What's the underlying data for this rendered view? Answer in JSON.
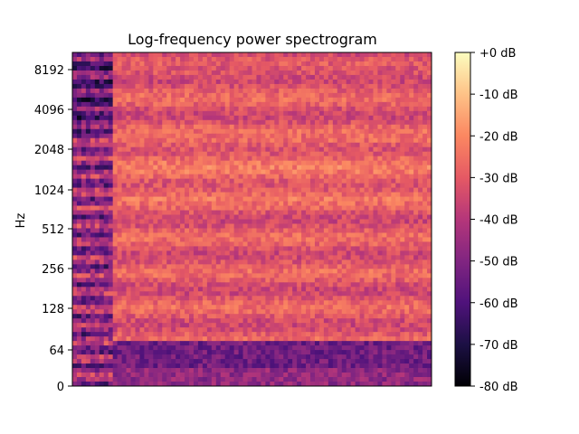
{
  "chart_data": {
    "type": "heatmap",
    "title": "Log-frequency power spectrogram",
    "xlabel": "",
    "ylabel": "Hz",
    "y_scale": "log2 (with linear region near 0)",
    "y_ticks": [
      "0",
      "64",
      "128",
      "256",
      "512",
      "1024",
      "2048",
      "4096",
      "8192"
    ],
    "colorbar": {
      "colormap": "magma",
      "range_db": [
        -80,
        0
      ],
      "ticks": [
        "+0 dB",
        "-10 dB",
        "-20 dB",
        "-30 dB",
        "-40 dB",
        "-50 dB",
        "-60 dB",
        "-70 dB",
        "-80 dB"
      ]
    },
    "x_ticks_shown": false,
    "regions": [
      {
        "description": "onset segment at start of time axis",
        "approx_level_db": -45
      },
      {
        "description": "low frequencies below ~80 Hz after onset",
        "approx_level_db": -55
      },
      {
        "description": "mid/high frequencies 128-8192 Hz sustained",
        "approx_level_db": -20
      }
    ]
  }
}
